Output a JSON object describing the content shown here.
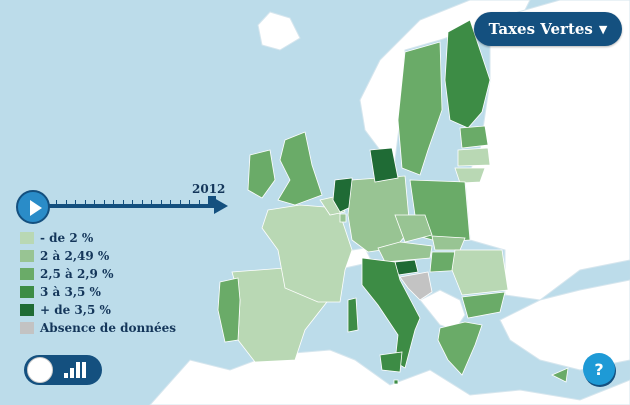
{
  "title_menu": {
    "label": "Taxes Vertes",
    "icon": "caret-down-icon"
  },
  "timeline": {
    "year": "2012"
  },
  "colors": {
    "sea": "#bcdcea",
    "no_data": "#c3c3c3",
    "classes": [
      "#b9d8b4",
      "#98c493",
      "#6aab68",
      "#3d8c45",
      "#1f6b35"
    ]
  },
  "legend": [
    {
      "label": "- de 2 %",
      "color": "#b9d8b4"
    },
    {
      "label": "2 à 2,49 %",
      "color": "#98c493"
    },
    {
      "label": "2,5 à 2,9 %",
      "color": "#6aab68"
    },
    {
      "label": "3 à 3,5 %",
      "color": "#3d8c45"
    },
    {
      "label": "+ de 3,5 %",
      "color": "#1f6b35"
    },
    {
      "label": "Absence de données",
      "color": "#c3c3c3"
    }
  ],
  "countries": {
    "spain": 0,
    "portugal": 2,
    "france": 0,
    "belgium": 0,
    "netherlands": 4,
    "uk": 2,
    "ireland": 2,
    "germany": 1,
    "denmark": 4,
    "sweden": 2,
    "finland": 3,
    "estonia": 2,
    "latvia": 0,
    "lithuania": 0,
    "poland": 2,
    "czechia": 1,
    "slovakia": 1,
    "austria": 1,
    "hungary": 2,
    "slovenia": 4,
    "croatia": "no_data",
    "italy": 3,
    "romania": 0,
    "bulgaria": 2,
    "greece": 2,
    "cyprus": 2,
    "malta": 3,
    "luxembourg": 1
  },
  "controls": {
    "toggle_icon": "bar-chart-icon",
    "help_label": "?"
  }
}
